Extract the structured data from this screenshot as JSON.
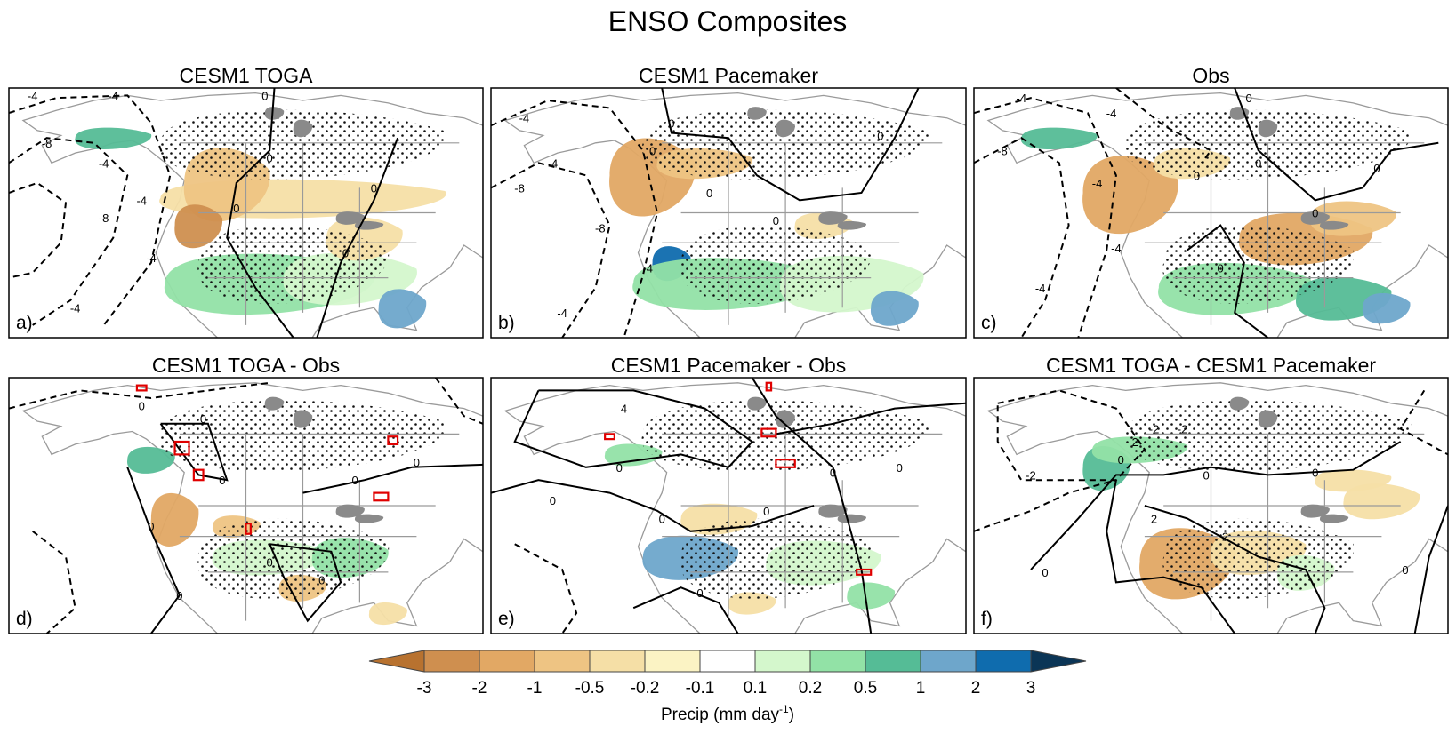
{
  "figure": {
    "title": "ENSO Composites"
  },
  "chart_data": [
    {
      "type": "heatmap",
      "panel_letter": "a)",
      "title": "CESM1 TOGA",
      "contour_labels": [
        "-4",
        "-4",
        "-4",
        "-8",
        "-8",
        "-4",
        "-4",
        "-4",
        "0",
        "0",
        "0",
        "0",
        "0"
      ]
    },
    {
      "type": "heatmap",
      "panel_letter": "b)",
      "title": "CESM1 Pacemaker",
      "contour_labels": [
        "-4",
        "-4",
        "-8",
        "-8",
        "-4",
        "-4",
        "0",
        "0",
        "0",
        "0",
        "0"
      ]
    },
    {
      "type": "heatmap",
      "panel_letter": "c)",
      "title": "Obs",
      "contour_labels": [
        "-4",
        "-4",
        "-8",
        "-4",
        "-4",
        "-4",
        "0",
        "0",
        "0",
        "0",
        "0",
        "0"
      ]
    },
    {
      "type": "heatmap",
      "panel_letter": "d)",
      "title": "CESM1 TOGA - Obs",
      "contour_labels": [
        "0",
        "0",
        "0",
        "0",
        "0",
        "0",
        "0",
        "0",
        "0"
      ]
    },
    {
      "type": "heatmap",
      "panel_letter": "e)",
      "title": "CESM1 Pacemaker - Obs",
      "contour_labels": [
        "4",
        "0",
        "0",
        "0",
        "0",
        "0",
        "0",
        "0"
      ]
    },
    {
      "type": "heatmap",
      "panel_letter": "f)",
      "title": "CESM1 TOGA - CESM1 Pacemaker",
      "contour_labels": [
        "2",
        "-2",
        "-2",
        "0",
        "-2",
        "2",
        "2",
        "0",
        "0",
        "0",
        "0"
      ]
    }
  ],
  "colorbar": {
    "label_main": "Precip (mm day",
    "label_sup": "-1",
    "label_close": ")",
    "ticks": [
      "-3",
      "-2",
      "-1",
      "-0.5",
      "-0.2",
      "-0.1",
      "0.1",
      "0.2",
      "0.5",
      "1",
      "2",
      "3"
    ],
    "colors": [
      "#b8722f",
      "#cf8f4f",
      "#e2a864",
      "#eec483",
      "#f5dfa6",
      "#fbf3c4",
      "#ffffff",
      "#d4f7cc",
      "#92e2a6",
      "#55bc96",
      "#6ea6cb",
      "#0f6cae",
      "#0b3556"
    ]
  }
}
